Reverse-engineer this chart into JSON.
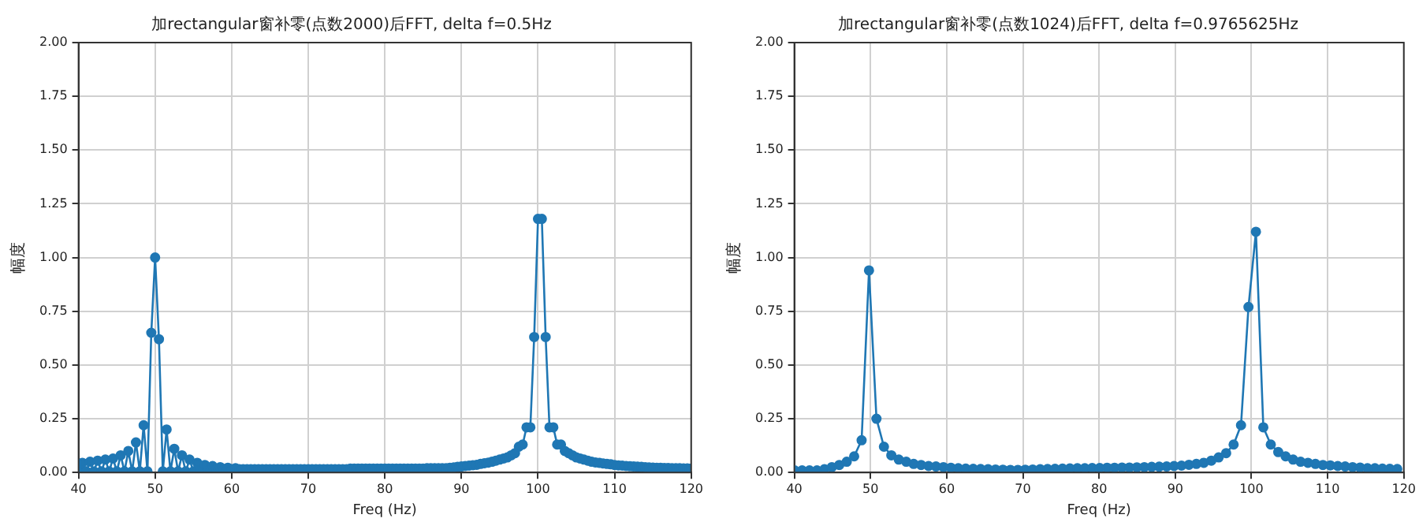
{
  "chart_data": [
    {
      "type": "line",
      "title": "加rectangular窗补零(点数2000)后FFT, delta f=0.5Hz",
      "xlabel": "Freq (Hz)",
      "ylabel": "幅度",
      "marker": "circle",
      "grid": true,
      "xlim": [
        40,
        120
      ],
      "xticks": [
        40,
        50,
        60,
        70,
        80,
        90,
        100,
        110,
        120
      ],
      "ylim": [
        0,
        2
      ],
      "yticks": [
        {
          "value": 0,
          "label": "0.00"
        },
        0.25,
        {
          "value": 0.5,
          "label": "0.50"
        },
        0.75,
        {
          "value": 1,
          "label": "1.00"
        },
        1.25,
        {
          "value": 1.5,
          "label": "1.50"
        },
        1.75,
        {
          "value": 2,
          "label": "2.00"
        }
      ],
      "series": [
        {
          "color": "#1f77b4",
          "x": [
            40,
            40.5,
            41,
            41.5,
            42,
            42.5,
            43,
            43.5,
            44,
            44.5,
            45,
            45.5,
            46,
            46.5,
            47,
            47.5,
            48,
            48.5,
            49,
            49.5,
            50,
            50.5,
            51,
            51.5,
            52,
            52.5,
            53,
            53.5,
            54,
            54.5,
            55,
            55.5,
            56,
            56.5,
            57,
            57.5,
            58,
            58.5,
            59,
            59.5,
            60,
            60.5,
            61,
            61.5,
            62,
            62.5,
            63,
            63.5,
            64,
            64.5,
            65,
            65.5,
            66,
            66.5,
            67,
            67.5,
            68,
            68.5,
            69,
            69.5,
            70,
            70.5,
            71,
            71.5,
            72,
            72.5,
            73,
            73.5,
            74,
            74.5,
            75,
            75.5,
            76,
            76.5,
            77,
            77.5,
            78,
            78.5,
            79,
            79.5,
            80,
            80.5,
            81,
            81.5,
            82,
            82.5,
            83,
            83.5,
            84,
            84.5,
            85,
            85.5,
            86,
            86.5,
            87,
            87.5,
            88,
            88.5,
            89,
            89.5,
            90,
            90.5,
            91,
            91.5,
            92,
            92.5,
            93,
            93.5,
            94,
            94.5,
            95,
            95.5,
            96,
            96.5,
            97,
            97.5,
            98,
            98.5,
            99,
            99.5,
            100,
            100.5,
            101,
            101.5,
            102,
            102.5,
            103,
            103.5,
            104,
            104.5,
            105,
            105.5,
            106,
            106.5,
            107,
            107.5,
            108,
            108.5,
            109,
            109.5,
            110,
            110.5,
            111,
            111.5,
            112,
            112.5,
            113,
            113.5,
            114,
            114.5,
            115,
            115.5,
            116,
            116.5,
            117,
            117.5,
            118,
            118.5,
            119,
            119.5,
            120
          ],
          "values": [
            0.01,
            0.045,
            0.005,
            0.05,
            0.005,
            0.055,
            0.005,
            0.06,
            0.005,
            0.065,
            0.005,
            0.08,
            0.005,
            0.1,
            0.005,
            0.14,
            0.005,
            0.22,
            0.005,
            0.65,
            1.0,
            0.62,
            0.005,
            0.2,
            0.005,
            0.11,
            0.005,
            0.08,
            0.005,
            0.06,
            0.005,
            0.045,
            0.01,
            0.035,
            0.01,
            0.03,
            0.015,
            0.025,
            0.015,
            0.022,
            0.015,
            0.02,
            0.015,
            0.015,
            0.015,
            0.015,
            0.015,
            0.015,
            0.015,
            0.015,
            0.015,
            0.015,
            0.015,
            0.015,
            0.015,
            0.015,
            0.015,
            0.015,
            0.015,
            0.015,
            0.015,
            0.015,
            0.015,
            0.015,
            0.015,
            0.015,
            0.015,
            0.015,
            0.015,
            0.015,
            0.015,
            0.018,
            0.018,
            0.018,
            0.018,
            0.018,
            0.018,
            0.018,
            0.018,
            0.018,
            0.018,
            0.018,
            0.018,
            0.018,
            0.018,
            0.018,
            0.018,
            0.018,
            0.018,
            0.018,
            0.018,
            0.02,
            0.02,
            0.02,
            0.02,
            0.02,
            0.02,
            0.022,
            0.024,
            0.026,
            0.028,
            0.03,
            0.032,
            0.034,
            0.036,
            0.04,
            0.043,
            0.046,
            0.05,
            0.055,
            0.06,
            0.065,
            0.07,
            0.08,
            0.09,
            0.12,
            0.13,
            0.21,
            0.21,
            0.63,
            1.18,
            1.18,
            0.63,
            0.21,
            0.21,
            0.13,
            0.13,
            0.1,
            0.09,
            0.08,
            0.07,
            0.065,
            0.06,
            0.055,
            0.05,
            0.047,
            0.045,
            0.042,
            0.04,
            0.038,
            0.035,
            0.033,
            0.032,
            0.03,
            0.029,
            0.028,
            0.027,
            0.026,
            0.025,
            0.024,
            0.023,
            0.022,
            0.022,
            0.021,
            0.021,
            0.02,
            0.02,
            0.02,
            0.019,
            0.019,
            0.018
          ]
        }
      ]
    },
    {
      "type": "line",
      "title": "加rectangular窗补零(点数1024)后FFT, delta f=0.9765625Hz",
      "xlabel": "Freq (Hz)",
      "ylabel": "幅度",
      "marker": "circle",
      "grid": true,
      "xlim": [
        40,
        120
      ],
      "xticks": [
        40,
        50,
        60,
        70,
        80,
        90,
        100,
        110,
        120
      ],
      "ylim": [
        0,
        2
      ],
      "yticks": [
        {
          "value": 0,
          "label": "0.00"
        },
        0.25,
        {
          "value": 0.5,
          "label": "0.50"
        },
        0.75,
        {
          "value": 1,
          "label": "1.00"
        },
        1.25,
        {
          "value": 1.5,
          "label": "1.50"
        },
        1.75,
        {
          "value": 2,
          "label": "2.00"
        }
      ],
      "series": [
        {
          "color": "#1f77b4",
          "x": [
            40.04,
            41.02,
            41.99,
            42.97,
            43.95,
            44.92,
            45.9,
            46.88,
            47.85,
            48.83,
            49.8,
            50.78,
            51.76,
            52.73,
            53.71,
            54.69,
            55.66,
            56.64,
            57.62,
            58.59,
            59.57,
            60.55,
            61.52,
            62.5,
            63.48,
            64.45,
            65.43,
            66.41,
            67.38,
            68.36,
            69.34,
            70.31,
            71.29,
            72.27,
            73.24,
            74.22,
            75.2,
            76.17,
            77.15,
            78.13,
            79.1,
            80.08,
            81.05,
            82.03,
            83.01,
            83.98,
            84.96,
            85.94,
            86.91,
            87.89,
            88.87,
            89.84,
            90.82,
            91.8,
            92.77,
            93.75,
            94.73,
            95.7,
            96.68,
            97.66,
            98.63,
            99.61,
            100.59,
            101.56,
            102.54,
            103.52,
            104.49,
            105.47,
            106.45,
            107.42,
            108.4,
            109.38,
            110.35,
            111.33,
            112.3,
            113.28,
            114.26,
            115.23,
            116.21,
            117.19,
            118.16,
            119.14
          ],
          "values": [
            0.01,
            0.01,
            0.01,
            0.01,
            0.015,
            0.025,
            0.035,
            0.05,
            0.075,
            0.15,
            0.94,
            0.25,
            0.12,
            0.08,
            0.06,
            0.05,
            0.04,
            0.035,
            0.03,
            0.028,
            0.025,
            0.022,
            0.02,
            0.018,
            0.017,
            0.016,
            0.015,
            0.014,
            0.013,
            0.012,
            0.012,
            0.013,
            0.014,
            0.015,
            0.016,
            0.017,
            0.018,
            0.019,
            0.02,
            0.02,
            0.021,
            0.021,
            0.022,
            0.022,
            0.023,
            0.023,
            0.024,
            0.025,
            0.026,
            0.027,
            0.028,
            0.03,
            0.032,
            0.036,
            0.04,
            0.045,
            0.055,
            0.07,
            0.09,
            0.13,
            0.22,
            0.77,
            1.12,
            0.21,
            0.13,
            0.095,
            0.075,
            0.06,
            0.05,
            0.045,
            0.04,
            0.035,
            0.033,
            0.03,
            0.028,
            0.025,
            0.023,
            0.02,
            0.02,
            0.018,
            0.017,
            0.016
          ]
        }
      ]
    }
  ]
}
